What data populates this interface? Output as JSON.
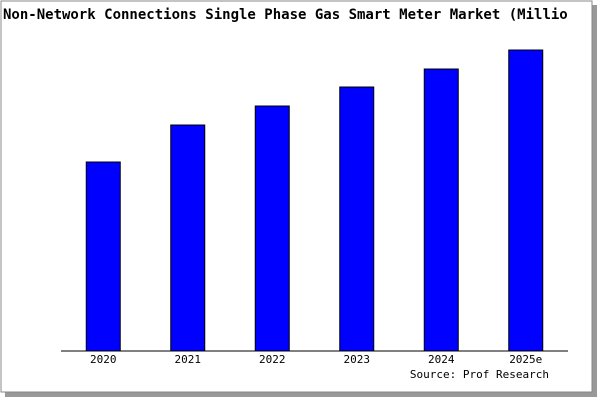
{
  "chart_data": {
    "type": "bar",
    "title": "Non-Network Connections Single Phase Gas Smart Meter Market (Millio",
    "categories": [
      "2020",
      "2021",
      "2022",
      "2023",
      "2024",
      "2025e"
    ],
    "values": [
      189,
      226,
      245,
      264,
      282,
      301
    ],
    "color": "#0000ff",
    "source": "Source: Prof Research"
  }
}
